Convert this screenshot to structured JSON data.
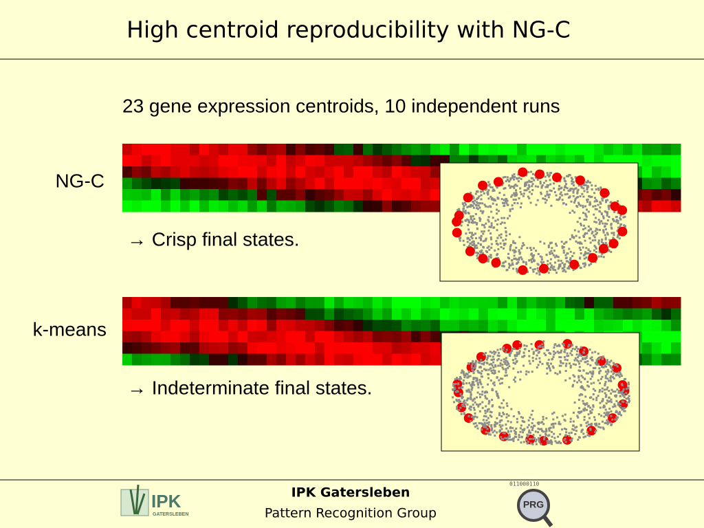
{
  "title": "High centroid reproducibility with NG-C",
  "subtitle": "23 gene expression centroids, 10 independent runs",
  "rows": [
    {
      "label": "NG-C",
      "note": "→ Crisp final states."
    },
    {
      "label": "k-means",
      "note": "→ Indeterminate final states."
    }
  ],
  "footer": {
    "institute": "IPK Gatersleben",
    "group": "Pattern Recognition Group",
    "logo_left": {
      "name": "IPK",
      "sub": "GATERSLEBEN"
    },
    "logo_right": {
      "name": "PRG",
      "bits": "011000110"
    }
  }
}
